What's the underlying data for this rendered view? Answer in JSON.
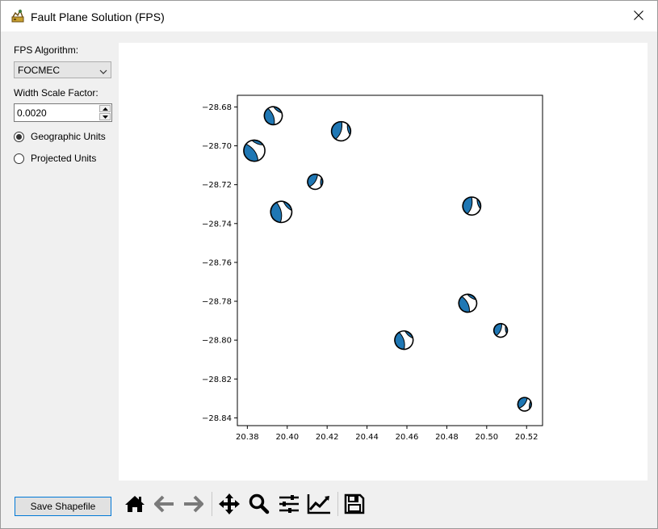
{
  "window": {
    "title": "Fault Plane Solution (FPS)",
    "app_icon": "seismometer-app-icon",
    "close_icon": "close-icon"
  },
  "left_panel": {
    "algorithm_label": "FPS Algorithm:",
    "algorithm_value": "FOCMEC",
    "width_label": "Width Scale Factor:",
    "width_value": "0.0020",
    "radio_geographic": "Geographic Units",
    "radio_projected": "Projected Units",
    "selected_units": "Geographic Units"
  },
  "bottom": {
    "save_label": "Save Shapefile",
    "toolbar_icons": [
      "home-icon",
      "back-arrow-icon",
      "forward-arrow-icon",
      "pan-icon",
      "zoom-icon",
      "configure-subplots-icon",
      "edit-axis-icon",
      "save-figure-icon"
    ]
  },
  "colors": {
    "beachball_fill": "#1f77b4",
    "beachball_outline": "#000000",
    "window_bg": "#f0f0f0",
    "plot_bg": "#ffffff"
  },
  "chart_data": {
    "type": "scatter",
    "marker": "beachball",
    "xlim": [
      20.375,
      20.528
    ],
    "ylim": [
      -28.844,
      -28.674
    ],
    "xticks": [
      "20.38",
      "20.40",
      "20.42",
      "20.44",
      "20.46",
      "20.48",
      "20.50",
      "20.52"
    ],
    "xtick_values": [
      20.38,
      20.4,
      20.42,
      20.44,
      20.46,
      20.48,
      20.5,
      20.52
    ],
    "yticks": [
      "−28.68",
      "−28.70",
      "−28.72",
      "−28.74",
      "−28.76",
      "−28.78",
      "−28.80",
      "−28.82",
      "−28.84"
    ],
    "ytick_values": [
      -28.68,
      -28.7,
      -28.72,
      -28.74,
      -28.76,
      -28.78,
      -28.8,
      -28.82,
      -28.84
    ],
    "events": [
      {
        "x": 20.393,
        "y": -28.6845,
        "size": 0.009
      },
      {
        "x": 20.427,
        "y": -28.6925,
        "size": 0.0096
      },
      {
        "x": 20.3835,
        "y": -28.7025,
        "size": 0.0106
      },
      {
        "x": 20.414,
        "y": -28.7185,
        "size": 0.0076
      },
      {
        "x": 20.397,
        "y": -28.734,
        "size": 0.0106
      },
      {
        "x": 20.4925,
        "y": -28.731,
        "size": 0.009
      },
      {
        "x": 20.4905,
        "y": -28.781,
        "size": 0.009
      },
      {
        "x": 20.507,
        "y": -28.795,
        "size": 0.0068
      },
      {
        "x": 20.4585,
        "y": -28.8,
        "size": 0.0092
      },
      {
        "x": 20.519,
        "y": -28.833,
        "size": 0.0068
      }
    ]
  }
}
